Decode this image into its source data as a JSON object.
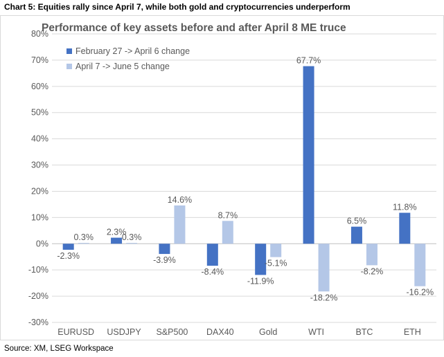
{
  "caption": "Chart 5: Equities rally since April 7, while both gold and cryptocurrencies underperform",
  "source": "Source: XM, LSEG Workspace",
  "colors": {
    "series1": "#4472c4",
    "series2": "#b4c7e7",
    "grid": "#d9d9d9",
    "axis": "#bfbfbf",
    "text": "#595959",
    "title": "#595959"
  },
  "chart_data": {
    "type": "bar",
    "title": "Performance of key assets before and after April 8 ME truce",
    "xlabel": "",
    "ylabel": "",
    "ylim": [
      -30,
      80
    ],
    "yticks": [
      -30,
      -20,
      -10,
      0,
      10,
      20,
      30,
      40,
      50,
      60,
      70,
      80
    ],
    "ytick_labels": [
      "-30%",
      "-20%",
      "-10%",
      "0%",
      "10%",
      "20%",
      "30%",
      "40%",
      "50%",
      "60%",
      "70%",
      "80%"
    ],
    "grid": true,
    "legend_position": "top-left",
    "categories": [
      "EURUSD",
      "USDJPY",
      "S&P500",
      "DAX40",
      "Gold",
      "WTI",
      "BTC",
      "ETH"
    ],
    "series": [
      {
        "name": "February 27 -> April 6 change",
        "values": [
          -2.3,
          2.3,
          -3.9,
          -8.4,
          -11.9,
          67.7,
          6.5,
          11.8
        ],
        "labels": [
          "-2.3%",
          "2.3%",
          "-3.9%",
          "-8.4%",
          "-11.9%",
          "67.7%",
          "6.5%",
          "11.8%"
        ]
      },
      {
        "name": "April 7 -> June 5 change",
        "values": [
          0.3,
          0.3,
          14.6,
          8.7,
          -5.1,
          -18.2,
          -8.2,
          -16.2
        ],
        "labels": [
          "0.3%",
          "0.3%",
          "14.6%",
          "8.7%",
          "-5.1%",
          "-18.2%",
          "-8.2%",
          "-16.2%"
        ]
      }
    ]
  }
}
